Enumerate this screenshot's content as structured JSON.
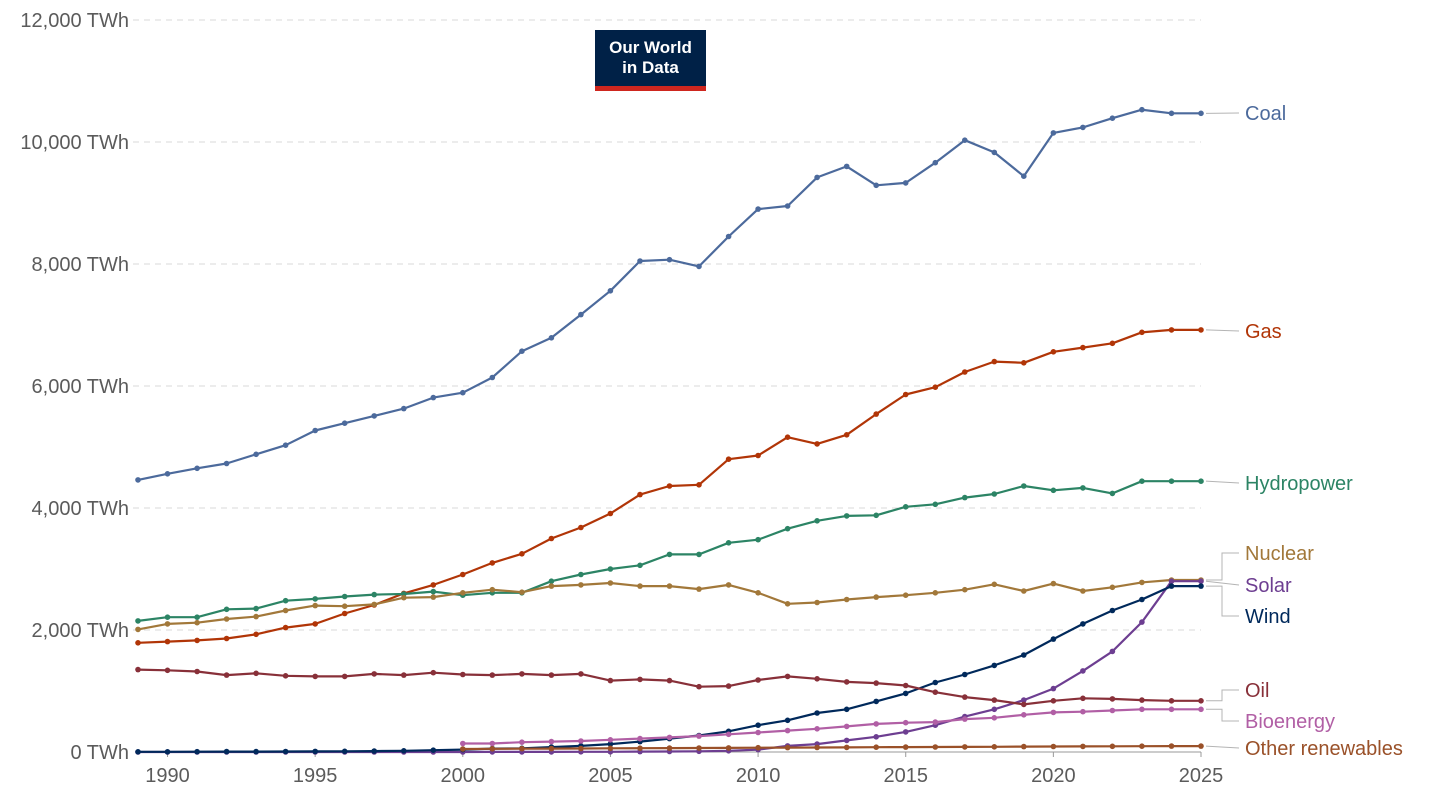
{
  "logo": {
    "line1": "Our World",
    "line2": "in Data"
  },
  "chart_data": {
    "type": "line",
    "x": [
      1989,
      1990,
      1991,
      1992,
      1993,
      1994,
      1995,
      1996,
      1997,
      1998,
      1999,
      2000,
      2001,
      2002,
      2003,
      2004,
      2005,
      2006,
      2007,
      2008,
      2009,
      2010,
      2011,
      2012,
      2013,
      2014,
      2015,
      2016,
      2017,
      2018,
      2019,
      2020,
      2021,
      2022,
      2023,
      2024,
      2025
    ],
    "xlim": [
      1989,
      2025
    ],
    "ylim": [
      0,
      12000
    ],
    "x_ticks": [
      {
        "value": 1990,
        "label": "1990"
      },
      {
        "value": 1995,
        "label": "1995"
      },
      {
        "value": 2000,
        "label": "2000"
      },
      {
        "value": 2005,
        "label": "2005"
      },
      {
        "value": 2010,
        "label": "2010"
      },
      {
        "value": 2015,
        "label": "2015"
      },
      {
        "value": 2020,
        "label": "2020"
      },
      {
        "value": 2025,
        "label": "2025"
      }
    ],
    "y_ticks": [
      {
        "value": 0,
        "label": "0 TWh"
      },
      {
        "value": 2000,
        "label": "2,000 TWh"
      },
      {
        "value": 4000,
        "label": "4,000 TWh"
      },
      {
        "value": 6000,
        "label": "6,000 TWh"
      },
      {
        "value": 8000,
        "label": "8,000 TWh"
      },
      {
        "value": 10000,
        "label": "10,000 TWh"
      },
      {
        "value": 12000,
        "label": "12,000 TWh"
      }
    ],
    "grid": "horizontal dashed",
    "legend": "right (labels at line ends)",
    "series": [
      {
        "name": "Coal",
        "color": "#4c6a9c",
        "values": [
          4460,
          4560,
          4650,
          4730,
          4880,
          5030,
          5270,
          5390,
          5510,
          5630,
          5810,
          5890,
          6140,
          6570,
          6790,
          7170,
          7560,
          8050,
          8070,
          7960,
          8450,
          8900,
          8950,
          9420,
          9600,
          9290,
          9330,
          9660,
          10030,
          9830,
          9440,
          10150,
          10240,
          10390,
          10530,
          10470,
          10470
        ]
      },
      {
        "name": "Gas",
        "color": "#b13507",
        "values": [
          1790,
          1810,
          1830,
          1860,
          1930,
          2040,
          2100,
          2270,
          2410,
          2600,
          2740,
          2910,
          3100,
          3250,
          3500,
          3680,
          3910,
          4220,
          4360,
          4380,
          4800,
          4860,
          5160,
          5050,
          5200,
          5540,
          5860,
          5980,
          6230,
          6400,
          6380,
          6560,
          6630,
          6700,
          6880,
          6920,
          6920
        ]
      },
      {
        "name": "Hydropower",
        "color": "#2c8465",
        "values": [
          2150,
          2210,
          2210,
          2340,
          2350,
          2480,
          2510,
          2550,
          2580,
          2590,
          2630,
          2570,
          2610,
          2610,
          2800,
          2910,
          3000,
          3060,
          3240,
          3240,
          3430,
          3480,
          3660,
          3790,
          3870,
          3880,
          4020,
          4060,
          4170,
          4230,
          4360,
          4290,
          4330,
          4240,
          4440,
          4440,
          4440
        ]
      },
      {
        "name": "Nuclear",
        "color": "#a2783a",
        "values": [
          2010,
          2100,
          2120,
          2180,
          2220,
          2320,
          2400,
          2390,
          2420,
          2530,
          2540,
          2610,
          2660,
          2620,
          2720,
          2740,
          2770,
          2720,
          2720,
          2670,
          2740,
          2610,
          2430,
          2450,
          2500,
          2540,
          2570,
          2610,
          2660,
          2750,
          2640,
          2760,
          2640,
          2700,
          2780,
          2820,
          2820
        ]
      },
      {
        "name": "Solar",
        "color": "#6d3e91",
        "values": [
          0,
          0,
          0,
          0,
          0,
          0,
          0,
          0,
          0,
          0,
          0,
          0,
          1,
          1,
          2,
          3,
          4,
          6,
          8,
          12,
          20,
          40,
          100,
          130,
          190,
          250,
          330,
          440,
          580,
          700,
          850,
          1040,
          1330,
          1650,
          2130,
          2800,
          2800
        ]
      },
      {
        "name": "Wind",
        "color": "#00295b",
        "values": [
          4,
          4,
          5,
          6,
          7,
          8,
          10,
          12,
          15,
          20,
          30,
          40,
          55,
          60,
          80,
          100,
          130,
          170,
          220,
          270,
          340,
          440,
          520,
          640,
          700,
          830,
          960,
          1140,
          1270,
          1420,
          1590,
          1850,
          2100,
          2320,
          2500,
          2720,
          2720
        ]
      },
      {
        "name": "Oil",
        "color": "#883039",
        "values": [
          1350,
          1340,
          1320,
          1260,
          1290,
          1250,
          1240,
          1240,
          1280,
          1260,
          1300,
          1270,
          1260,
          1280,
          1260,
          1280,
          1170,
          1190,
          1170,
          1070,
          1080,
          1180,
          1240,
          1200,
          1150,
          1130,
          1090,
          980,
          900,
          850,
          780,
          840,
          880,
          870,
          850,
          840,
          840
        ]
      },
      {
        "name": "Bioenergy",
        "color": "#b15fa5",
        "values": [
          null,
          null,
          null,
          null,
          null,
          null,
          null,
          null,
          null,
          null,
          null,
          140,
          140,
          160,
          170,
          180,
          200,
          220,
          240,
          260,
          290,
          320,
          350,
          380,
          420,
          460,
          480,
          490,
          540,
          560,
          610,
          650,
          660,
          680,
          700,
          700,
          700
        ]
      },
      {
        "name": "Other renewables",
        "color": "#9a5129",
        "values": [
          null,
          null,
          null,
          null,
          null,
          null,
          null,
          null,
          null,
          null,
          null,
          50,
          52,
          54,
          56,
          58,
          60,
          62,
          64,
          66,
          68,
          70,
          72,
          74,
          76,
          78,
          80,
          82,
          84,
          86,
          88,
          90,
          92,
          94,
          95,
          96,
          96
        ]
      }
    ]
  }
}
